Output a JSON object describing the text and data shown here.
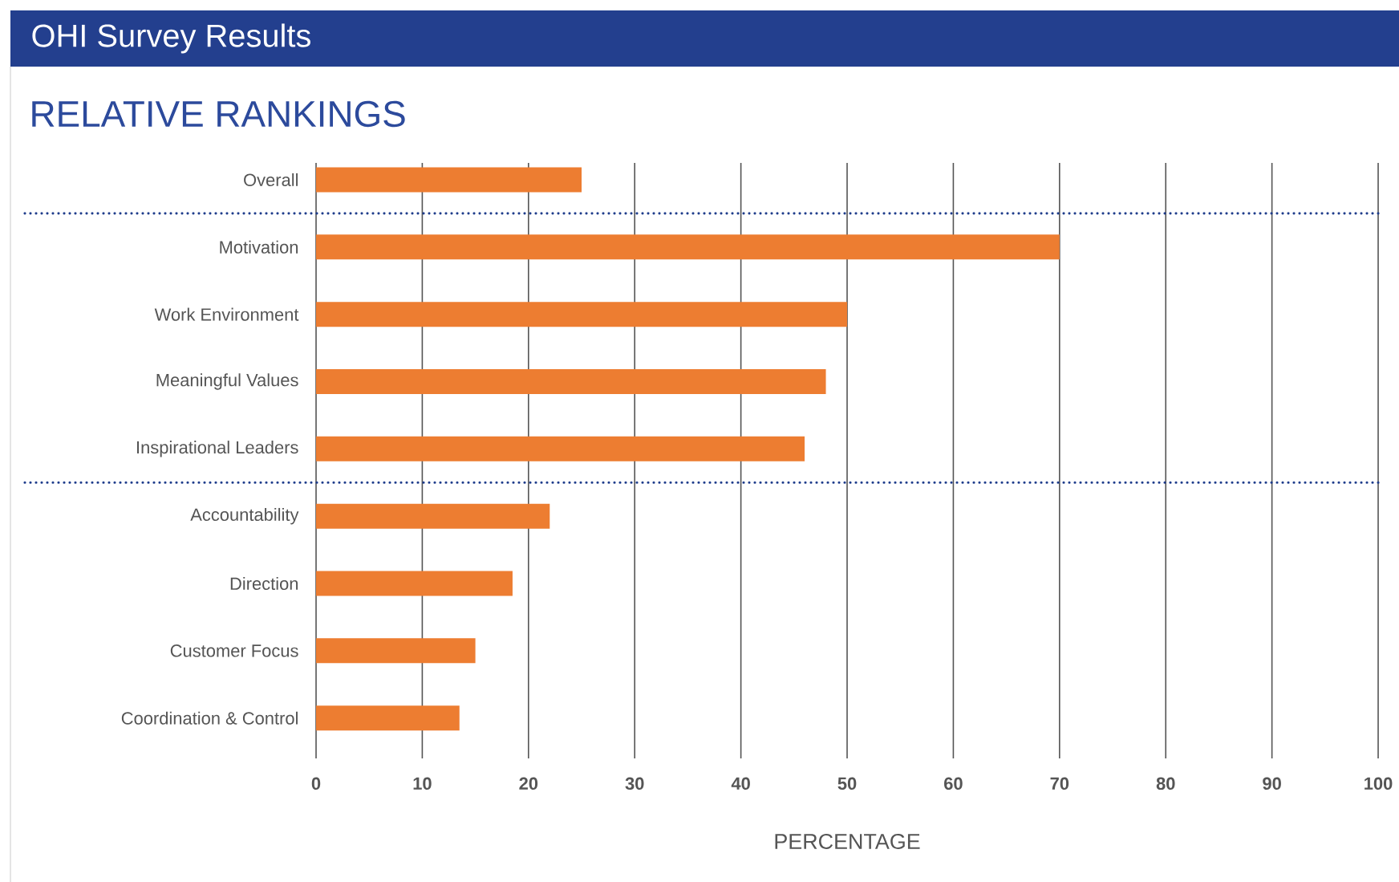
{
  "chart_data": {
    "type": "bar",
    "orientation": "horizontal",
    "title": "OHI Survey Results",
    "subtitle": "RELATIVE RANKINGS",
    "xlabel": "PERCENTAGE",
    "categories": [
      "Overall",
      "Motivation",
      "Work Environment",
      "Meaningful Values",
      "Inspirational Leaders",
      "Accountability",
      "Direction",
      "Customer Focus",
      "Coordination & Control"
    ],
    "values": [
      25,
      70,
      50,
      48,
      46,
      22,
      18.5,
      15,
      13.5
    ],
    "color": "#ed7d31",
    "xlim": [
      0,
      100
    ],
    "xticks": [
      0,
      10,
      20,
      30,
      40,
      50,
      60,
      70,
      80,
      90,
      100
    ],
    "grid": "x"
  }
}
